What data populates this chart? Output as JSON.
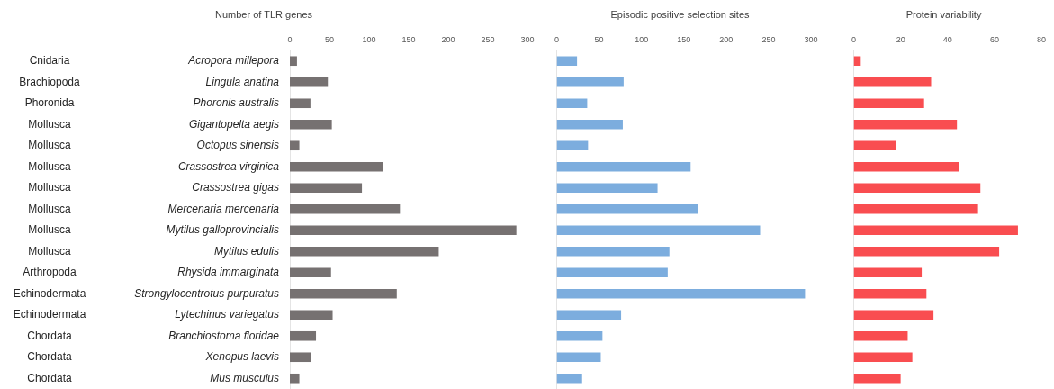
{
  "chart_data": [
    {
      "type": "bar",
      "orientation": "horizontal",
      "title": "Number of TLR genes",
      "categories": [
        "Acropora millepora",
        "Lingula anatina",
        "Phoronis australis",
        "Gigantopelta aegis",
        "Octopus sinensis",
        "Crassostrea virginica",
        "Crassostrea gigas",
        "Mercenaria mercenaria",
        "Mytilus galloprovincialis",
        "Mytilus edulis",
        "Rhysida immarginata",
        "Strongylocentrotus purpuratus",
        "Lytechinus variegatus",
        "Branchiostoma floridae",
        "Xenopus laevis",
        "Mus musculus"
      ],
      "values": [
        9,
        48,
        26,
        53,
        12,
        118,
        91,
        139,
        286,
        188,
        52,
        135,
        54,
        33,
        27,
        12
      ],
      "color": "#767171",
      "xlim": [
        0,
        300
      ],
      "xticks": [
        0,
        50,
        100,
        150,
        200,
        250,
        300
      ],
      "annotations": [
        "Cnidaria",
        "Brachiopoda",
        "Phoronida",
        "Mollusca",
        "Mollusca",
        "Mollusca",
        "Mollusca",
        "Mollusca",
        "Mollusca",
        "Mollusca",
        "Arthropoda",
        "Echinodermata",
        "Echinodermata",
        "Chordata",
        "Chordata",
        "Chordata"
      ]
    },
    {
      "type": "bar",
      "orientation": "horizontal",
      "title": "Episodic positive selection sites",
      "categories": [
        null,
        null,
        null,
        null,
        null,
        null,
        null,
        null,
        null,
        null,
        null,
        null,
        null,
        null,
        null,
        null
      ],
      "values": [
        24,
        79,
        36,
        78,
        37,
        158,
        119,
        167,
        240,
        133,
        131,
        293,
        76,
        54,
        52,
        30
      ],
      "color": "#7cadde",
      "xlim": [
        0,
        300
      ],
      "xticks": [
        0,
        50,
        100,
        150,
        200,
        250,
        300
      ],
      "tick_labels": "x"
    },
    {
      "type": "bar",
      "orientation": "horizontal",
      "title": "Protein variability",
      "categories": [
        null,
        null,
        null,
        null,
        null,
        null,
        null,
        null,
        null,
        null,
        null,
        null,
        null,
        null,
        null,
        null
      ],
      "values": [
        3,
        33,
        30,
        44,
        18,
        45,
        54,
        53,
        70,
        62,
        29,
        31,
        34,
        23,
        25,
        20
      ],
      "color": "#f94d50",
      "xlim": [
        0,
        80
      ],
      "xticks": [
        0,
        20,
        40,
        60,
        80
      ],
      "tick_labels": "x"
    }
  ]
}
